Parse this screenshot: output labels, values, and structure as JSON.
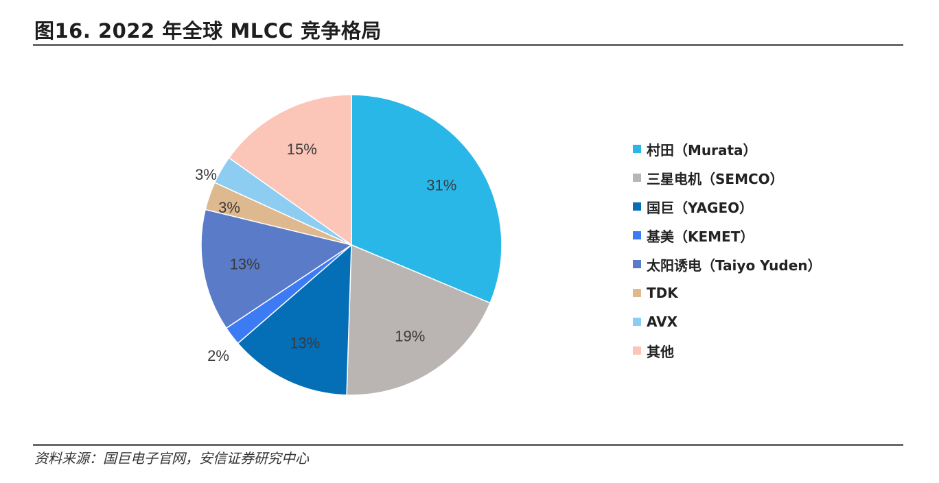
{
  "title": "图16. 2022 年全球 MLCC 竞争格局",
  "source": "资料来源：国巨电子官网，安信证券研究中心",
  "chart_data": {
    "type": "pie",
    "start": "12 o'clock",
    "direction": "clockwise",
    "legend_position": "right",
    "slices": [
      {
        "label": "村田（Murata）",
        "value": 31,
        "value_label": "31%",
        "color": "#29B7E8"
      },
      {
        "label": "三星电机（SEMCO）",
        "value": 19,
        "value_label": "19%",
        "color": "#BAB4B2"
      },
      {
        "label": "国巨（YAGEO）",
        "value": 13,
        "value_label": "13%",
        "color": "#046EB6"
      },
      {
        "label": "基美（KEMET）",
        "value": 2,
        "value_label": "2%",
        "color": "#3D7BF4"
      },
      {
        "label": "太阳诱电（Taiyo Yuden）",
        "value": 13,
        "value_label": "13%",
        "color": "#5A7BC8"
      },
      {
        "label": "TDK",
        "value": 3,
        "value_label": "3%",
        "color": "#DEB88E"
      },
      {
        "label": "AVX",
        "value": 3,
        "value_label": "3%",
        "color": "#8ECDF2"
      },
      {
        "label": "其他",
        "value": 15,
        "value_label": "15%",
        "color": "#FBC5B8"
      }
    ]
  }
}
